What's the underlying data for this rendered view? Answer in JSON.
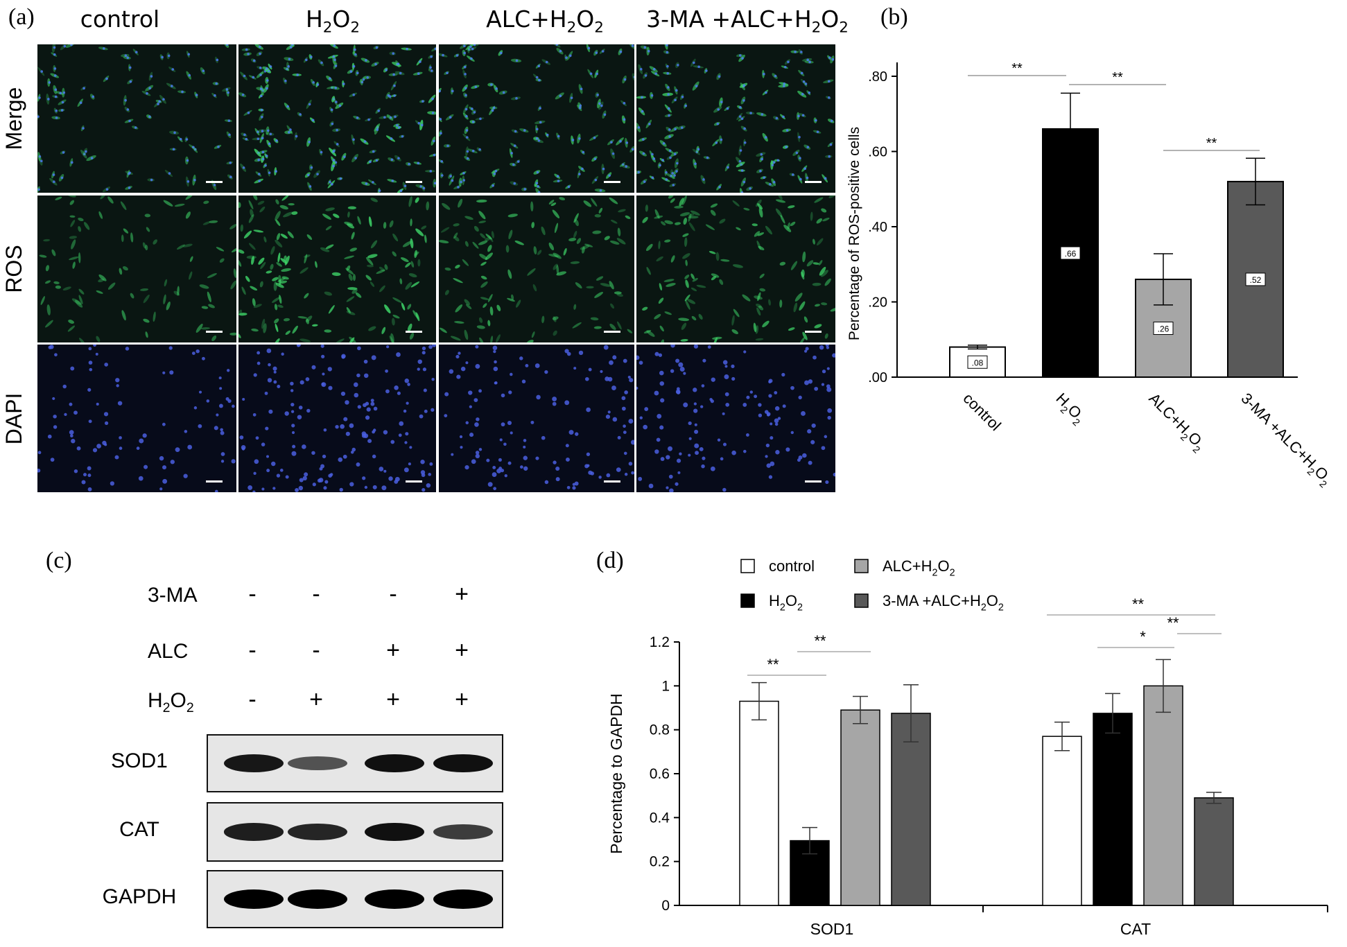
{
  "panel_labels": {
    "a": "(a)",
    "b": "(b)",
    "c": "(c)",
    "d": "(d)"
  },
  "panel_a": {
    "columns": [
      {
        "main": "control",
        "sub": "",
        "tail": ""
      },
      {
        "main": "H",
        "sub": "2",
        "tail": "O",
        "sub2": "2"
      },
      {
        "main": "ALC+H",
        "sub": "2",
        "tail": "O",
        "sub2": "2"
      },
      {
        "main": "3-MA +ALC+H",
        "sub": "2",
        "tail": "O",
        "sub2": "2"
      }
    ],
    "rows": [
      "Merge",
      "ROS",
      "DAPI"
    ]
  },
  "panel_c": {
    "treatments": [
      {
        "label": "3-MA",
        "signs": [
          "-",
          "-",
          "-",
          "+"
        ]
      },
      {
        "label": "ALC",
        "signs": [
          "-",
          "-",
          "+",
          "+"
        ]
      },
      {
        "label": "H",
        "label_sub": "2",
        "label_tail": "O",
        "label_sub2": "2",
        "signs": [
          "-",
          "+",
          "+",
          "+"
        ]
      }
    ],
    "blots": [
      "SOD1",
      "CAT",
      "GAPDH"
    ],
    "intensity": {
      "SOD1": [
        0.85,
        0.45,
        0.9,
        0.9
      ],
      "CAT": [
        0.8,
        0.75,
        0.9,
        0.6
      ],
      "GAPDH": [
        1.0,
        1.0,
        1.0,
        1.0
      ]
    }
  },
  "chart_data": [
    {
      "type": "bar",
      "panel": "(b)",
      "ylabel": "Percentage of ROS-positive cells",
      "ylim": [
        0,
        0.8
      ],
      "yticks": [
        ".00",
        ".20",
        ".40",
        ".60",
        ".80"
      ],
      "categories": [
        "control",
        "H2O2",
        "ALC+H2O2",
        "3-MA +ALC+H2O2"
      ],
      "values": [
        0.08,
        0.66,
        0.26,
        0.52
      ],
      "errors": [
        0.005,
        0.095,
        0.068,
        0.062
      ],
      "value_labels": [
        ".08",
        ".66",
        ".26",
        ".52"
      ],
      "colors": [
        "#ffffff",
        "#000000",
        "#a6a6a6",
        "#595959"
      ],
      "significance": [
        {
          "from": 0,
          "to": 1,
          "label": "**"
        },
        {
          "from": 1,
          "to": 2,
          "label": "**"
        },
        {
          "from": 2,
          "to": 3,
          "label": "**"
        }
      ],
      "grid": false
    },
    {
      "type": "bar",
      "panel": "(d)",
      "ylabel": "Percentage to GAPDH",
      "ylim": [
        0,
        1.2
      ],
      "yticks": [
        "0",
        "0.2",
        "0.4",
        "0.6",
        "0.8",
        "1",
        "1.2"
      ],
      "categories": [
        "SOD1",
        "CAT"
      ],
      "series": [
        {
          "name": "control",
          "values": [
            0.93,
            0.77
          ],
          "errors": [
            0.085,
            0.065
          ],
          "color": "#ffffff"
        },
        {
          "name": "H2O2",
          "values": [
            0.295,
            0.875
          ],
          "errors": [
            0.06,
            0.09
          ],
          "color": "#000000"
        },
        {
          "name": "ALC+H2O2",
          "values": [
            0.89,
            1.0
          ],
          "errors": [
            0.062,
            0.12
          ],
          "color": "#a6a6a6"
        },
        {
          "name": "3-MA +ALC+H2O2",
          "values": [
            0.875,
            0.49
          ],
          "errors": [
            0.13,
            0.025
          ],
          "color": "#595959"
        }
      ],
      "legend": {
        "placement": "top",
        "entries": [
          {
            "main": "control",
            "sub": "",
            "tail": "",
            "sub2": ""
          },
          {
            "main": "H",
            "sub": "2",
            "tail": "O",
            "sub2": "2"
          },
          {
            "main": "ALC+H",
            "sub": "2",
            "tail": "O",
            "sub2": "2"
          },
          {
            "main": "3-MA +ALC+H",
            "sub": "2",
            "tail": "O",
            "sub2": "2"
          }
        ]
      },
      "significance": [
        {
          "label": "**",
          "group": "SOD1",
          "from": 0,
          "to": 1
        },
        {
          "label": "**",
          "group": "SOD1",
          "from": 1,
          "to": 2
        },
        {
          "label": "**",
          "group": "CAT",
          "from": 0,
          "to": 3
        },
        {
          "label": "*",
          "group": "CAT",
          "from": 1,
          "to": 2
        },
        {
          "label": "**",
          "group": "CAT",
          "from": 2,
          "to": 3
        }
      ],
      "grid": false
    }
  ]
}
